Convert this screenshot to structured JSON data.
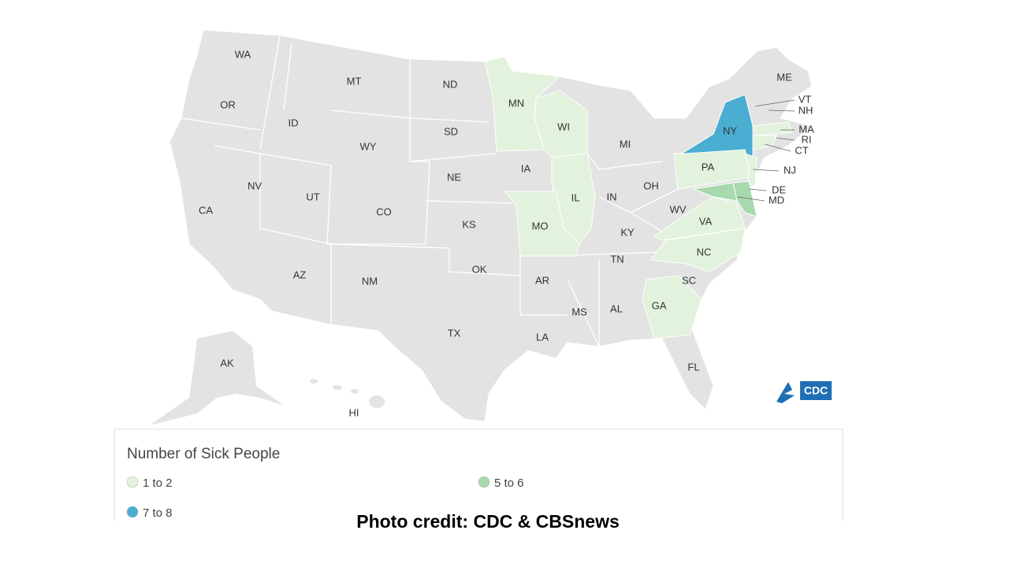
{
  "map": {
    "states": [
      {
        "label": "WA"
      },
      {
        "label": "OR"
      },
      {
        "label": "CA"
      },
      {
        "label": "NV"
      },
      {
        "label": "ID"
      },
      {
        "label": "MT"
      },
      {
        "label": "WY"
      },
      {
        "label": "UT"
      },
      {
        "label": "CO"
      },
      {
        "label": "AZ"
      },
      {
        "label": "NM"
      },
      {
        "label": "ND"
      },
      {
        "label": "SD"
      },
      {
        "label": "NE"
      },
      {
        "label": "KS"
      },
      {
        "label": "OK"
      },
      {
        "label": "TX"
      },
      {
        "label": "MN",
        "group": 0
      },
      {
        "label": "IA"
      },
      {
        "label": "MO",
        "group": 0
      },
      {
        "label": "AR"
      },
      {
        "label": "LA"
      },
      {
        "label": "WI",
        "group": 0
      },
      {
        "label": "IL",
        "group": 0
      },
      {
        "label": "MI"
      },
      {
        "label": "IN"
      },
      {
        "label": "OH"
      },
      {
        "label": "KY"
      },
      {
        "label": "TN"
      },
      {
        "label": "MS"
      },
      {
        "label": "AL"
      },
      {
        "label": "GA",
        "group": 0
      },
      {
        "label": "FL"
      },
      {
        "label": "SC"
      },
      {
        "label": "NC",
        "group": 0
      },
      {
        "label": "VA",
        "group": 0
      },
      {
        "label": "WV"
      },
      {
        "label": "PA",
        "group": 0
      },
      {
        "label": "NY",
        "group": 2
      },
      {
        "label": "ME"
      },
      {
        "label": "VT"
      },
      {
        "label": "NH"
      },
      {
        "label": "MA",
        "group": 0
      },
      {
        "label": "RI"
      },
      {
        "label": "CT",
        "group": 0
      },
      {
        "label": "NJ",
        "group": 0
      },
      {
        "label": "DE",
        "group": 1
      },
      {
        "label": "MD",
        "group": 1
      },
      {
        "label": "AK"
      },
      {
        "label": "HI"
      }
    ],
    "legend": {
      "title": "Number of Sick People",
      "items": [
        {
          "label": "1 to 2",
          "color": "#e2f2dc"
        },
        {
          "label": "5 to 6",
          "color": "#a6d9ae"
        },
        {
          "label": "7 to 8",
          "color": "#4aaed3"
        }
      ]
    },
    "logo": "CDC"
  },
  "credit": "Photo credit: CDC & CBSnews"
}
